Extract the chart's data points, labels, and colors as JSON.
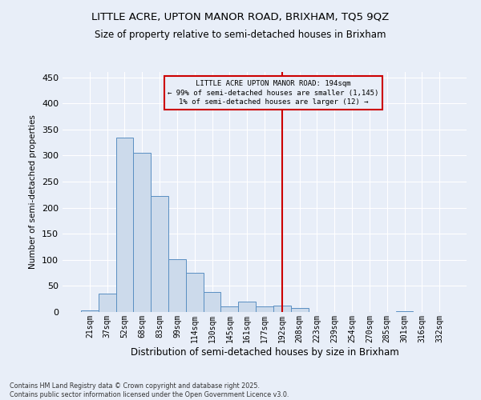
{
  "title": "LITTLE ACRE, UPTON MANOR ROAD, BRIXHAM, TQ5 9QZ",
  "subtitle": "Size of property relative to semi-detached houses in Brixham",
  "xlabel": "Distribution of semi-detached houses by size in Brixham",
  "ylabel": "Number of semi-detached properties",
  "footnote1": "Contains HM Land Registry data © Crown copyright and database right 2025.",
  "footnote2": "Contains public sector information licensed under the Open Government Licence v3.0.",
  "annotation_title": "LITTLE ACRE UPTON MANOR ROAD: 194sqm",
  "annotation_line1": "← 99% of semi-detached houses are smaller (1,145)",
  "annotation_line2": "1% of semi-detached houses are larger (12) →",
  "bar_color": "#ccdaeb",
  "bar_edge_color": "#5a8fc2",
  "vline_color": "#cc0000",
  "annotation_box_color": "#cc0000",
  "background_color": "#e8eef8",
  "grid_color": "#ffffff",
  "categories": [
    "21sqm",
    "37sqm",
    "52sqm",
    "68sqm",
    "83sqm",
    "99sqm",
    "114sqm",
    "130sqm",
    "145sqm",
    "161sqm",
    "177sqm",
    "192sqm",
    "208sqm",
    "223sqm",
    "239sqm",
    "254sqm",
    "270sqm",
    "285sqm",
    "301sqm",
    "316sqm",
    "332sqm"
  ],
  "values": [
    3,
    35,
    335,
    305,
    223,
    101,
    75,
    38,
    10,
    20,
    11,
    12,
    7,
    0,
    0,
    0,
    0,
    0,
    2,
    0,
    0
  ],
  "vline_x": 11,
  "ylim": [
    0,
    460
  ],
  "yticks": [
    0,
    50,
    100,
    150,
    200,
    250,
    300,
    350,
    400,
    450
  ]
}
